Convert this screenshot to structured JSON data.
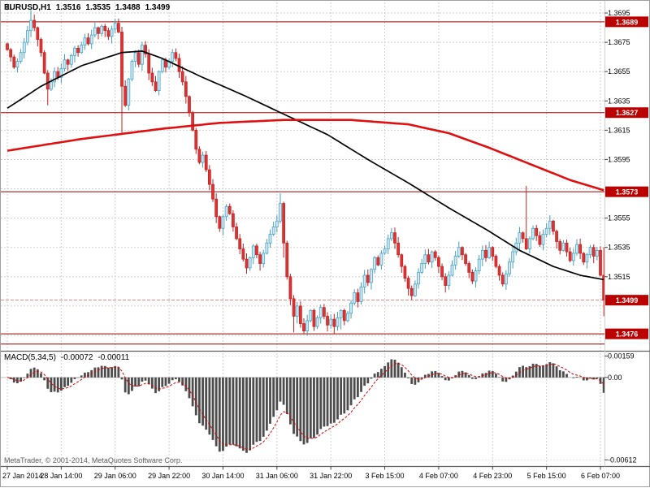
{
  "header": {
    "symbol": "EURUSD,H1",
    "open": "1.3516",
    "high": "1.3535",
    "low": "1.3488",
    "close": "1.3499"
  },
  "footer": {
    "copyright": "MetaTrader, © 2001-2014, MetaQuotes Software Corp."
  },
  "colors": {
    "background": "#ffffff",
    "grid": "#cfcfcf",
    "bear_fill": "#dd3333",
    "bear_border": "#c42222",
    "bull_fill": "#cfeaf6",
    "bull_border": "#44a0c0",
    "ma_black": "#000000",
    "ma_red": "#e01010",
    "hline": "#990000",
    "bid_line": "#e08080",
    "badge_bg": "#bb0000",
    "badge_text": "#ffffff",
    "macd_bar": "#4d4d4d",
    "macd_signal": "#dd0000",
    "separator": "#606060",
    "axis_text": "#000000"
  },
  "chart_data": {
    "type": "candlestick",
    "title": "EURUSD H1 with MACD(5,34,5)",
    "ylim": [
      1.3465,
      1.37
    ],
    "grid_step": 0.002,
    "x_tick_step": 16,
    "time_labels": [
      "27 Jan 2014",
      "28 Jan 14:00",
      "29 Jan 06:00",
      "29 Jan 22:00",
      "30 Jan 14:00",
      "31 Jan 06:00",
      "31 Jan 22:00",
      "3 Feb 15:00",
      "4 Feb 07:00",
      "4 Feb 23:00",
      "5 Feb 15:00",
      "6 Feb 07:00"
    ],
    "price_ticks": [
      "1.3695",
      "1.3675",
      "1.3655",
      "1.3635",
      "1.3615",
      "1.3595",
      "1.3555",
      "1.3535",
      "1.3515"
    ],
    "price_badges": [
      "1.3689",
      "1.3627",
      "1.3573",
      "1.3499",
      "1.3476"
    ],
    "hlines": [
      1.3689,
      1.3627,
      1.3573,
      1.3476,
      1.3469
    ],
    "bid_line": 1.3499,
    "current_bar": {
      "open": 1.3516,
      "high": 1.3535,
      "low": 1.3488,
      "close": 1.3499
    },
    "closes": [
      1.367,
      1.3665,
      1.3658,
      1.3662,
      1.3668,
      1.3675,
      1.3683,
      1.369,
      1.3685,
      1.3677,
      1.3668,
      1.3654,
      1.3643,
      1.3648,
      1.3655,
      1.3651,
      1.3657,
      1.3663,
      1.366,
      1.3666,
      1.3671,
      1.3668,
      1.3673,
      1.3678,
      1.3674,
      1.368,
      1.3685,
      1.3681,
      1.3686,
      1.3683,
      1.3679,
      1.3684,
      1.3688,
      1.3682,
      1.3645,
      1.3632,
      1.365,
      1.3662,
      1.3668,
      1.366,
      1.3673,
      1.3667,
      1.3654,
      1.3648,
      1.3642,
      1.3655,
      1.3663,
      1.3658,
      1.3662,
      1.3668,
      1.3664,
      1.3655,
      1.3648,
      1.3638,
      1.3627,
      1.3615,
      1.3602,
      1.3593,
      1.3598,
      1.3588,
      1.3578,
      1.3568,
      1.3556,
      1.3548,
      1.3556,
      1.3563,
      1.3558,
      1.3549,
      1.3541,
      1.3534,
      1.3527,
      1.3521,
      1.3528,
      1.3536,
      1.353,
      1.3524,
      1.3531,
      1.3538,
      1.3544,
      1.3549,
      1.3553,
      1.3565,
      1.3538,
      1.3515,
      1.35,
      1.3488,
      1.3495,
      1.3483,
      1.3478,
      1.3485,
      1.3492,
      1.3481,
      1.3487,
      1.3494,
      1.3488,
      1.3482,
      1.3486,
      1.3481,
      1.3487,
      1.3492,
      1.3485,
      1.349,
      1.3497,
      1.3504,
      1.3498,
      1.3508,
      1.3516,
      1.3511,
      1.352,
      1.3528,
      1.3523,
      1.3531,
      1.3534,
      1.3541,
      1.3545,
      1.3538,
      1.353,
      1.3522,
      1.3514,
      1.3507,
      1.3502,
      1.351,
      1.3518,
      1.3524,
      1.353,
      1.3525,
      1.3532,
      1.3528,
      1.3522,
      1.3515,
      1.3509,
      1.3516,
      1.3523,
      1.3529,
      1.3535,
      1.353,
      1.3524,
      1.3518,
      1.3512,
      1.3519,
      1.3527,
      1.3533,
      1.3528,
      1.3535,
      1.3529,
      1.3522,
      1.3516,
      1.351,
      1.3517,
      1.3525,
      1.3532,
      1.3538,
      1.3545,
      1.3541,
      1.3534,
      1.3541,
      1.3548,
      1.3543,
      1.3537,
      1.3544,
      1.3548,
      1.3553,
      1.3546,
      1.3539,
      1.3533,
      1.3538,
      1.3532,
      1.3526,
      1.3531,
      1.3537,
      1.3531,
      1.3525,
      1.353,
      1.3535,
      1.3529,
      1.3533,
      1.3516,
      1.3499
    ],
    "wick_overrides": [
      {
        "i": 7,
        "high": 1.3697
      },
      {
        "i": 12,
        "low": 1.3632
      },
      {
        "i": 32,
        "high": 1.3691
      },
      {
        "i": 34,
        "low": 1.3613
      },
      {
        "i": 81,
        "high": 1.3572
      },
      {
        "i": 82,
        "low": 1.3528
      },
      {
        "i": 85,
        "low": 1.3477
      },
      {
        "i": 88,
        "low": 1.3476
      },
      {
        "i": 91,
        "low": 1.3478
      },
      {
        "i": 99,
        "low": 1.3479
      },
      {
        "i": 154,
        "high": 1.3577
      },
      {
        "i": 177,
        "high": 1.3535,
        "low": 1.3488
      }
    ],
    "moving_averages": [
      {
        "name": "black-ma",
        "color": "#000000",
        "width": 1.7,
        "points": [
          [
            0,
            1.363
          ],
          [
            10,
            1.3645
          ],
          [
            22,
            1.3659
          ],
          [
            34,
            1.3668
          ],
          [
            40,
            1.3669
          ],
          [
            46,
            1.3664
          ],
          [
            58,
            1.3651
          ],
          [
            70,
            1.3639
          ],
          [
            82,
            1.3626
          ],
          [
            95,
            1.3612
          ],
          [
            107,
            1.3595
          ],
          [
            119,
            1.3579
          ],
          [
            131,
            1.3562
          ],
          [
            143,
            1.3546
          ],
          [
            152,
            1.3533
          ],
          [
            162,
            1.3522
          ],
          [
            170,
            1.3516
          ],
          [
            177,
            1.3513
          ]
        ]
      },
      {
        "name": "red-ma",
        "color": "#e01010",
        "width": 2.6,
        "points": [
          [
            0,
            1.3601
          ],
          [
            22,
            1.3609
          ],
          [
            46,
            1.3616
          ],
          [
            63,
            1.362
          ],
          [
            82,
            1.3622
          ],
          [
            102,
            1.3622
          ],
          [
            119,
            1.3619
          ],
          [
            131,
            1.3613
          ],
          [
            143,
            1.3603
          ],
          [
            155,
            1.3592
          ],
          [
            167,
            1.3581
          ],
          [
            177,
            1.3574
          ]
        ]
      }
    ],
    "macd": {
      "label": "MACD(5,34,5)",
      "value": "-0.00072",
      "signal": "-0.00011",
      "params": [
        5,
        34,
        5
      ],
      "ticks": [
        "0.00159",
        "0.00",
        "-0.00612"
      ]
    }
  }
}
